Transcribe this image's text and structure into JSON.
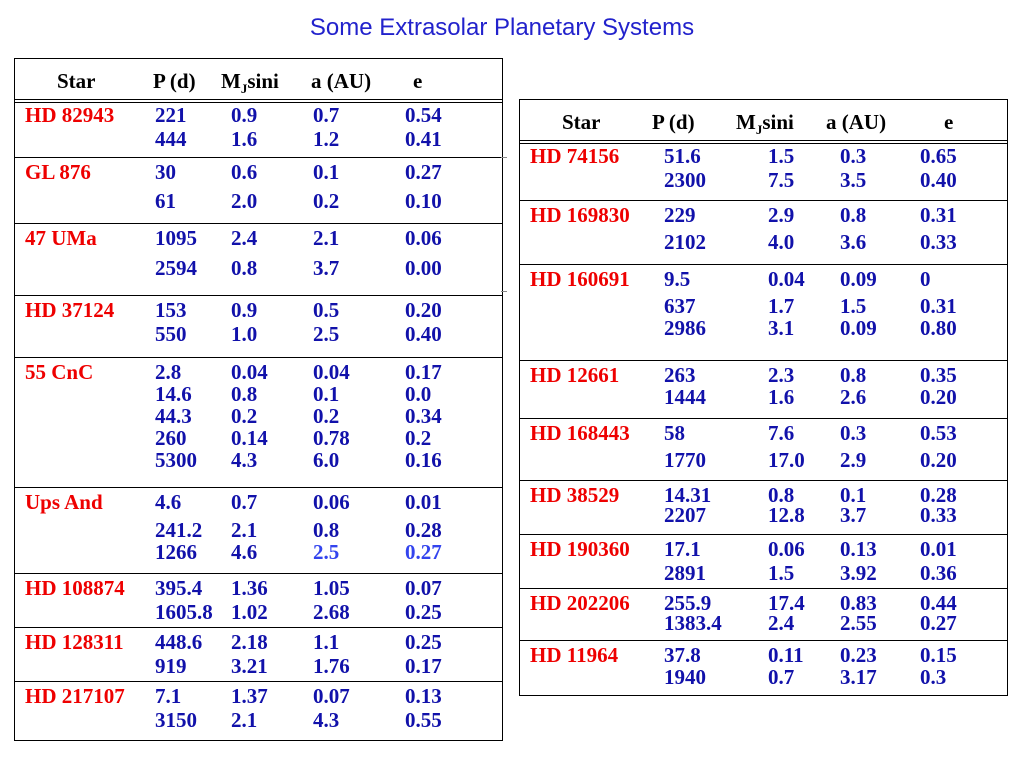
{
  "title": "Some Extrasolar Planetary Systems",
  "colors": {
    "title": "#2222cc",
    "star_name": "#ee0000",
    "values": "#1111aa",
    "highlight": "#3344ee"
  },
  "left_table": {
    "headers": {
      "star": "Star",
      "p": "P (d)",
      "m_base": "M",
      "m_sub": "J",
      "m_tail": "sini",
      "a": "a (AU)",
      "e": "e"
    },
    "groups": [
      {
        "star": "HD 82943",
        "rows": [
          [
            "221",
            "0.9",
            "0.7",
            "0.54"
          ],
          [
            "444",
            "1.6",
            "1.2",
            "0.41"
          ]
        ]
      },
      {
        "star": "GL 876",
        "rows": [
          [
            "30",
            "0.6",
            "0.1",
            "0.27"
          ],
          [
            "61",
            "2.0",
            "0.2",
            "0.10"
          ]
        ]
      },
      {
        "star": "47 UMa",
        "rows": [
          [
            "1095",
            "2.4",
            "2.1",
            "0.06"
          ],
          [
            "2594",
            "0.8",
            "3.7",
            "0.00"
          ]
        ]
      },
      {
        "star": "HD 37124",
        "rows": [
          [
            "153",
            "0.9",
            "0.5",
            "0.20"
          ],
          [
            "550",
            "1.0",
            "2.5",
            "0.40"
          ]
        ]
      },
      {
        "star": "55 CnC",
        "rows": [
          [
            "2.8",
            "0.04",
            "0.04",
            "0.17"
          ],
          [
            "14.6",
            "0.8",
            "0.1",
            "0.0"
          ],
          [
            "44.3",
            "0.2",
            "0.2",
            "0.34"
          ],
          [
            "260",
            "0.14",
            "0.78",
            "0.2"
          ],
          [
            "5300",
            "4.3",
            "6.0",
            "0.16"
          ]
        ]
      },
      {
        "star": "Ups And",
        "rows": [
          [
            "4.6",
            "0.7",
            "0.06",
            "0.01"
          ],
          [
            "241.2",
            "2.1",
            "0.8",
            "0.28"
          ],
          [
            "1266",
            "4.6",
            "2.5",
            "0.27"
          ]
        ]
      },
      {
        "star": "HD 108874",
        "rows": [
          [
            "395.4",
            "1.36",
            "1.05",
            "0.07"
          ],
          [
            "1605.8",
            "1.02",
            "2.68",
            "0.25"
          ]
        ]
      },
      {
        "star": "HD 128311",
        "rows": [
          [
            "448.6",
            "2.18",
            "1.1",
            "0.25"
          ],
          [
            "919",
            "3.21",
            "1.76",
            "0.17"
          ]
        ]
      },
      {
        "star": "HD 217107",
        "rows": [
          [
            "7.1",
            "1.37",
            "0.07",
            "0.13"
          ],
          [
            "3150",
            "2.1",
            "4.3",
            "0.55"
          ]
        ]
      }
    ]
  },
  "right_table": {
    "headers": {
      "star": "Star",
      "p": "P (d)",
      "m_base": "M",
      "m_sub": "J",
      "m_tail": "sini",
      "a": "a (AU)",
      "e": "e"
    },
    "groups": [
      {
        "star": "HD 74156",
        "rows": [
          [
            "51.6",
            "1.5",
            "0.3",
            "0.65"
          ],
          [
            "2300",
            "7.5",
            "3.5",
            "0.40"
          ]
        ]
      },
      {
        "star": "HD 169830",
        "rows": [
          [
            "229",
            "2.9",
            "0.8",
            "0.31"
          ],
          [
            "2102",
            "4.0",
            "3.6",
            "0.33"
          ]
        ]
      },
      {
        "star": "HD 160691",
        "rows": [
          [
            "9.5",
            "0.04",
            "0.09",
            "0"
          ],
          [
            "637",
            "1.7",
            "1.5",
            "0.31"
          ],
          [
            "2986",
            "3.1",
            "0.09",
            "0.80"
          ]
        ]
      },
      {
        "star": "HD 12661",
        "rows": [
          [
            "263",
            "2.3",
            "0.8",
            "0.35"
          ],
          [
            "1444",
            "1.6",
            "2.6",
            "0.20"
          ]
        ]
      },
      {
        "star": "HD 168443",
        "rows": [
          [
            "58",
            "7.6",
            "0.3",
            "0.53"
          ],
          [
            "1770",
            "17.0",
            "2.9",
            "0.20"
          ]
        ]
      },
      {
        "star": "HD 38529",
        "rows": [
          [
            "14.31",
            "0.8",
            "0.1",
            "0.28"
          ],
          [
            "2207",
            "12.8",
            "3.7",
            "0.33"
          ]
        ]
      },
      {
        "star": "HD 190360",
        "rows": [
          [
            "17.1",
            "0.06",
            "0.13",
            "0.01"
          ],
          [
            "2891",
            "1.5",
            "3.92",
            "0.36"
          ]
        ]
      },
      {
        "star": "HD 202206",
        "rows": [
          [
            "255.9",
            "17.4",
            "0.83",
            "0.44"
          ],
          [
            "1383.4",
            "2.4",
            "2.55",
            "0.27"
          ]
        ]
      },
      {
        "star": "HD 11964",
        "rows": [
          [
            "37.8",
            "0.11",
            "0.23",
            "0.15"
          ],
          [
            "1940",
            "0.7",
            "3.17",
            "0.3"
          ]
        ]
      }
    ]
  }
}
